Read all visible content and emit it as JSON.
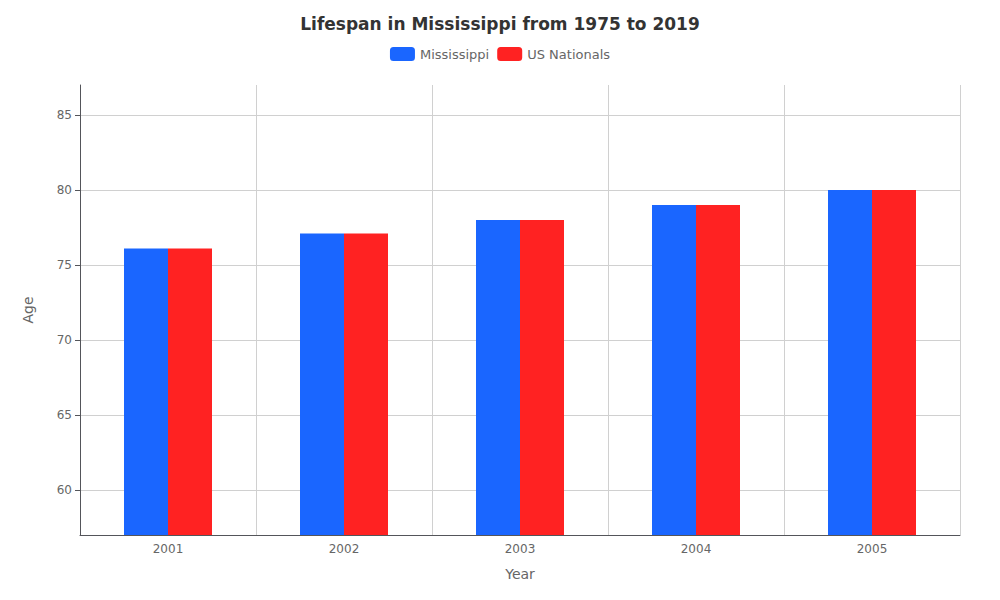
{
  "chart_data": {
    "type": "bar",
    "title": "Lifespan in Mississippi from 1975 to 2019",
    "xlabel": "Year",
    "ylabel": "Age",
    "categories": [
      "2001",
      "2002",
      "2003",
      "2004",
      "2005"
    ],
    "series": [
      {
        "name": "Mississippi",
        "color": "#1a66ff",
        "values": [
          76.1,
          77.1,
          78.0,
          79.0,
          80.0
        ]
      },
      {
        "name": "US Nationals",
        "color": "#ff2222",
        "values": [
          76.1,
          77.1,
          78.0,
          79.0,
          80.0
        ]
      }
    ],
    "ylim": [
      57,
      87
    ],
    "yticks": [
      60,
      65,
      70,
      75,
      80,
      85
    ],
    "grid": true,
    "legend": "top"
  }
}
